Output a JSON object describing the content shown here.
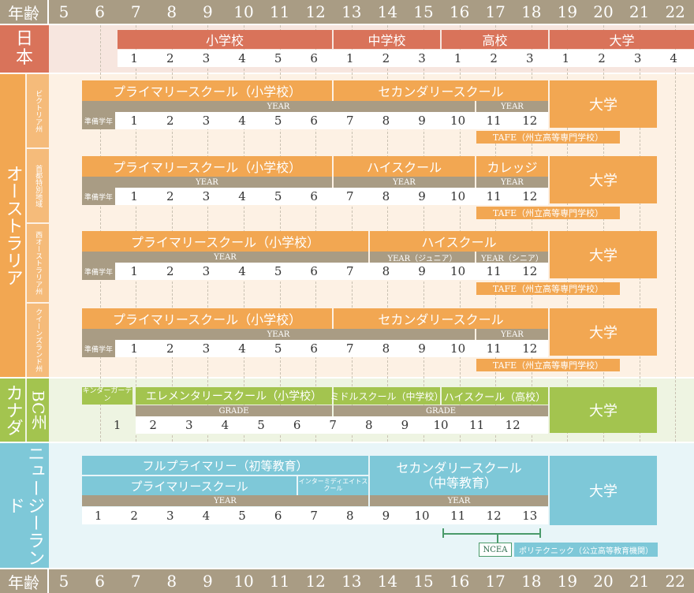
{
  "age_header": {
    "label": "年齢",
    "ages": [
      "5",
      "6",
      "7",
      "8",
      "9",
      "10",
      "11",
      "12",
      "13",
      "14",
      "15",
      "16",
      "17",
      "18",
      "19",
      "20",
      "21",
      "22"
    ]
  },
  "colors": {
    "japan": "#d9735a",
    "australia": "#f2a752",
    "canada": "#a3c44f",
    "nz": "#7ec8d8",
    "grey": "#a99c84"
  },
  "japan": {
    "label": "日本",
    "elementary": "小学校",
    "junior": "中学校",
    "high": "高校",
    "university": "大学",
    "elem_years": [
      "1",
      "2",
      "3",
      "4",
      "5",
      "6"
    ],
    "junior_years": [
      "1",
      "2",
      "3"
    ],
    "high_years": [
      "1",
      "2",
      "3"
    ],
    "uni_years": [
      "1",
      "2",
      "3",
      "4"
    ]
  },
  "australia": {
    "label": "オーストラリア",
    "vic": {
      "label": "ビクトリア州",
      "primary": "プライマリースクール（小学校）",
      "secondary": "セカンダリースクール",
      "year1": "YEAR",
      "year2": "YEAR",
      "prep": "準備学年",
      "years": [
        "1",
        "2",
        "3",
        "4",
        "5",
        "6",
        "7",
        "8",
        "9",
        "10",
        "11",
        "12"
      ],
      "tafe": "TAFE（州立高等専門学校）",
      "university": "大学"
    },
    "act": {
      "label": "首都特別地域",
      "primary": "プライマリースクール（小学校）",
      "high": "ハイスクール",
      "college": "カレッジ",
      "year1": "YEAR",
      "year2": "YEAR",
      "year3": "YEAR",
      "prep": "準備学年",
      "years": [
        "1",
        "2",
        "3",
        "4",
        "5",
        "6",
        "7",
        "8",
        "9",
        "10",
        "11",
        "12"
      ],
      "tafe": "TAFE（州立高等専門学校）",
      "university": "大学"
    },
    "wa": {
      "label": "西オーストラリア州",
      "primary": "プライマリースクール（小学校）",
      "high": "ハイスクール",
      "year1": "YEAR",
      "year_junior": "YEAR（ジュニア）",
      "year_senior": "YEAR（シニア）",
      "prep": "準備学年",
      "years": [
        "1",
        "2",
        "3",
        "4",
        "5",
        "6",
        "7",
        "8",
        "9",
        "10",
        "11",
        "12"
      ],
      "tafe": "TAFE（州立高等専門学校）",
      "university": "大学"
    },
    "qld": {
      "label": "クイーンズランド州",
      "primary": "プライマリースクール（小学校）",
      "secondary": "セカンダリースクール",
      "year1": "YEAR",
      "year2": "YEAR",
      "prep": "準備学年",
      "years": [
        "1",
        "2",
        "3",
        "4",
        "5",
        "6",
        "7",
        "8",
        "9",
        "10",
        "11",
        "12"
      ],
      "tafe": "TAFE（州立高等専門学校）",
      "university": "大学"
    }
  },
  "canada": {
    "label": "カナダ",
    "province": "BC州",
    "kinder": "キンダーガーテン",
    "elementary": "エレメンタリースクール（小学校）",
    "middle": "ミドルスクール（中学校）",
    "high": "ハイスクール（高校）",
    "grade1": "GRADE",
    "grade2": "GRADE",
    "years": [
      "1",
      "2",
      "3",
      "4",
      "5",
      "6",
      "7",
      "8",
      "9",
      "10",
      "11",
      "12"
    ],
    "university": "大学"
  },
  "nz": {
    "label": "ニュージーランド",
    "full_primary": "フルプライマリー（初等教育）",
    "primary": "プライマリースクール",
    "intermediate": "インターミディエイトスクール",
    "secondary": "セカンダリースクール（中等教育）",
    "year1": "YEAR",
    "year2": "YEAR",
    "years": [
      "1",
      "2",
      "3",
      "4",
      "5",
      "6",
      "7",
      "8",
      "9",
      "10",
      "11",
      "12",
      "13"
    ],
    "ncea": "NCEA",
    "polytech": "ポリテクニック（公立高等教育機関）",
    "university": "大学"
  }
}
